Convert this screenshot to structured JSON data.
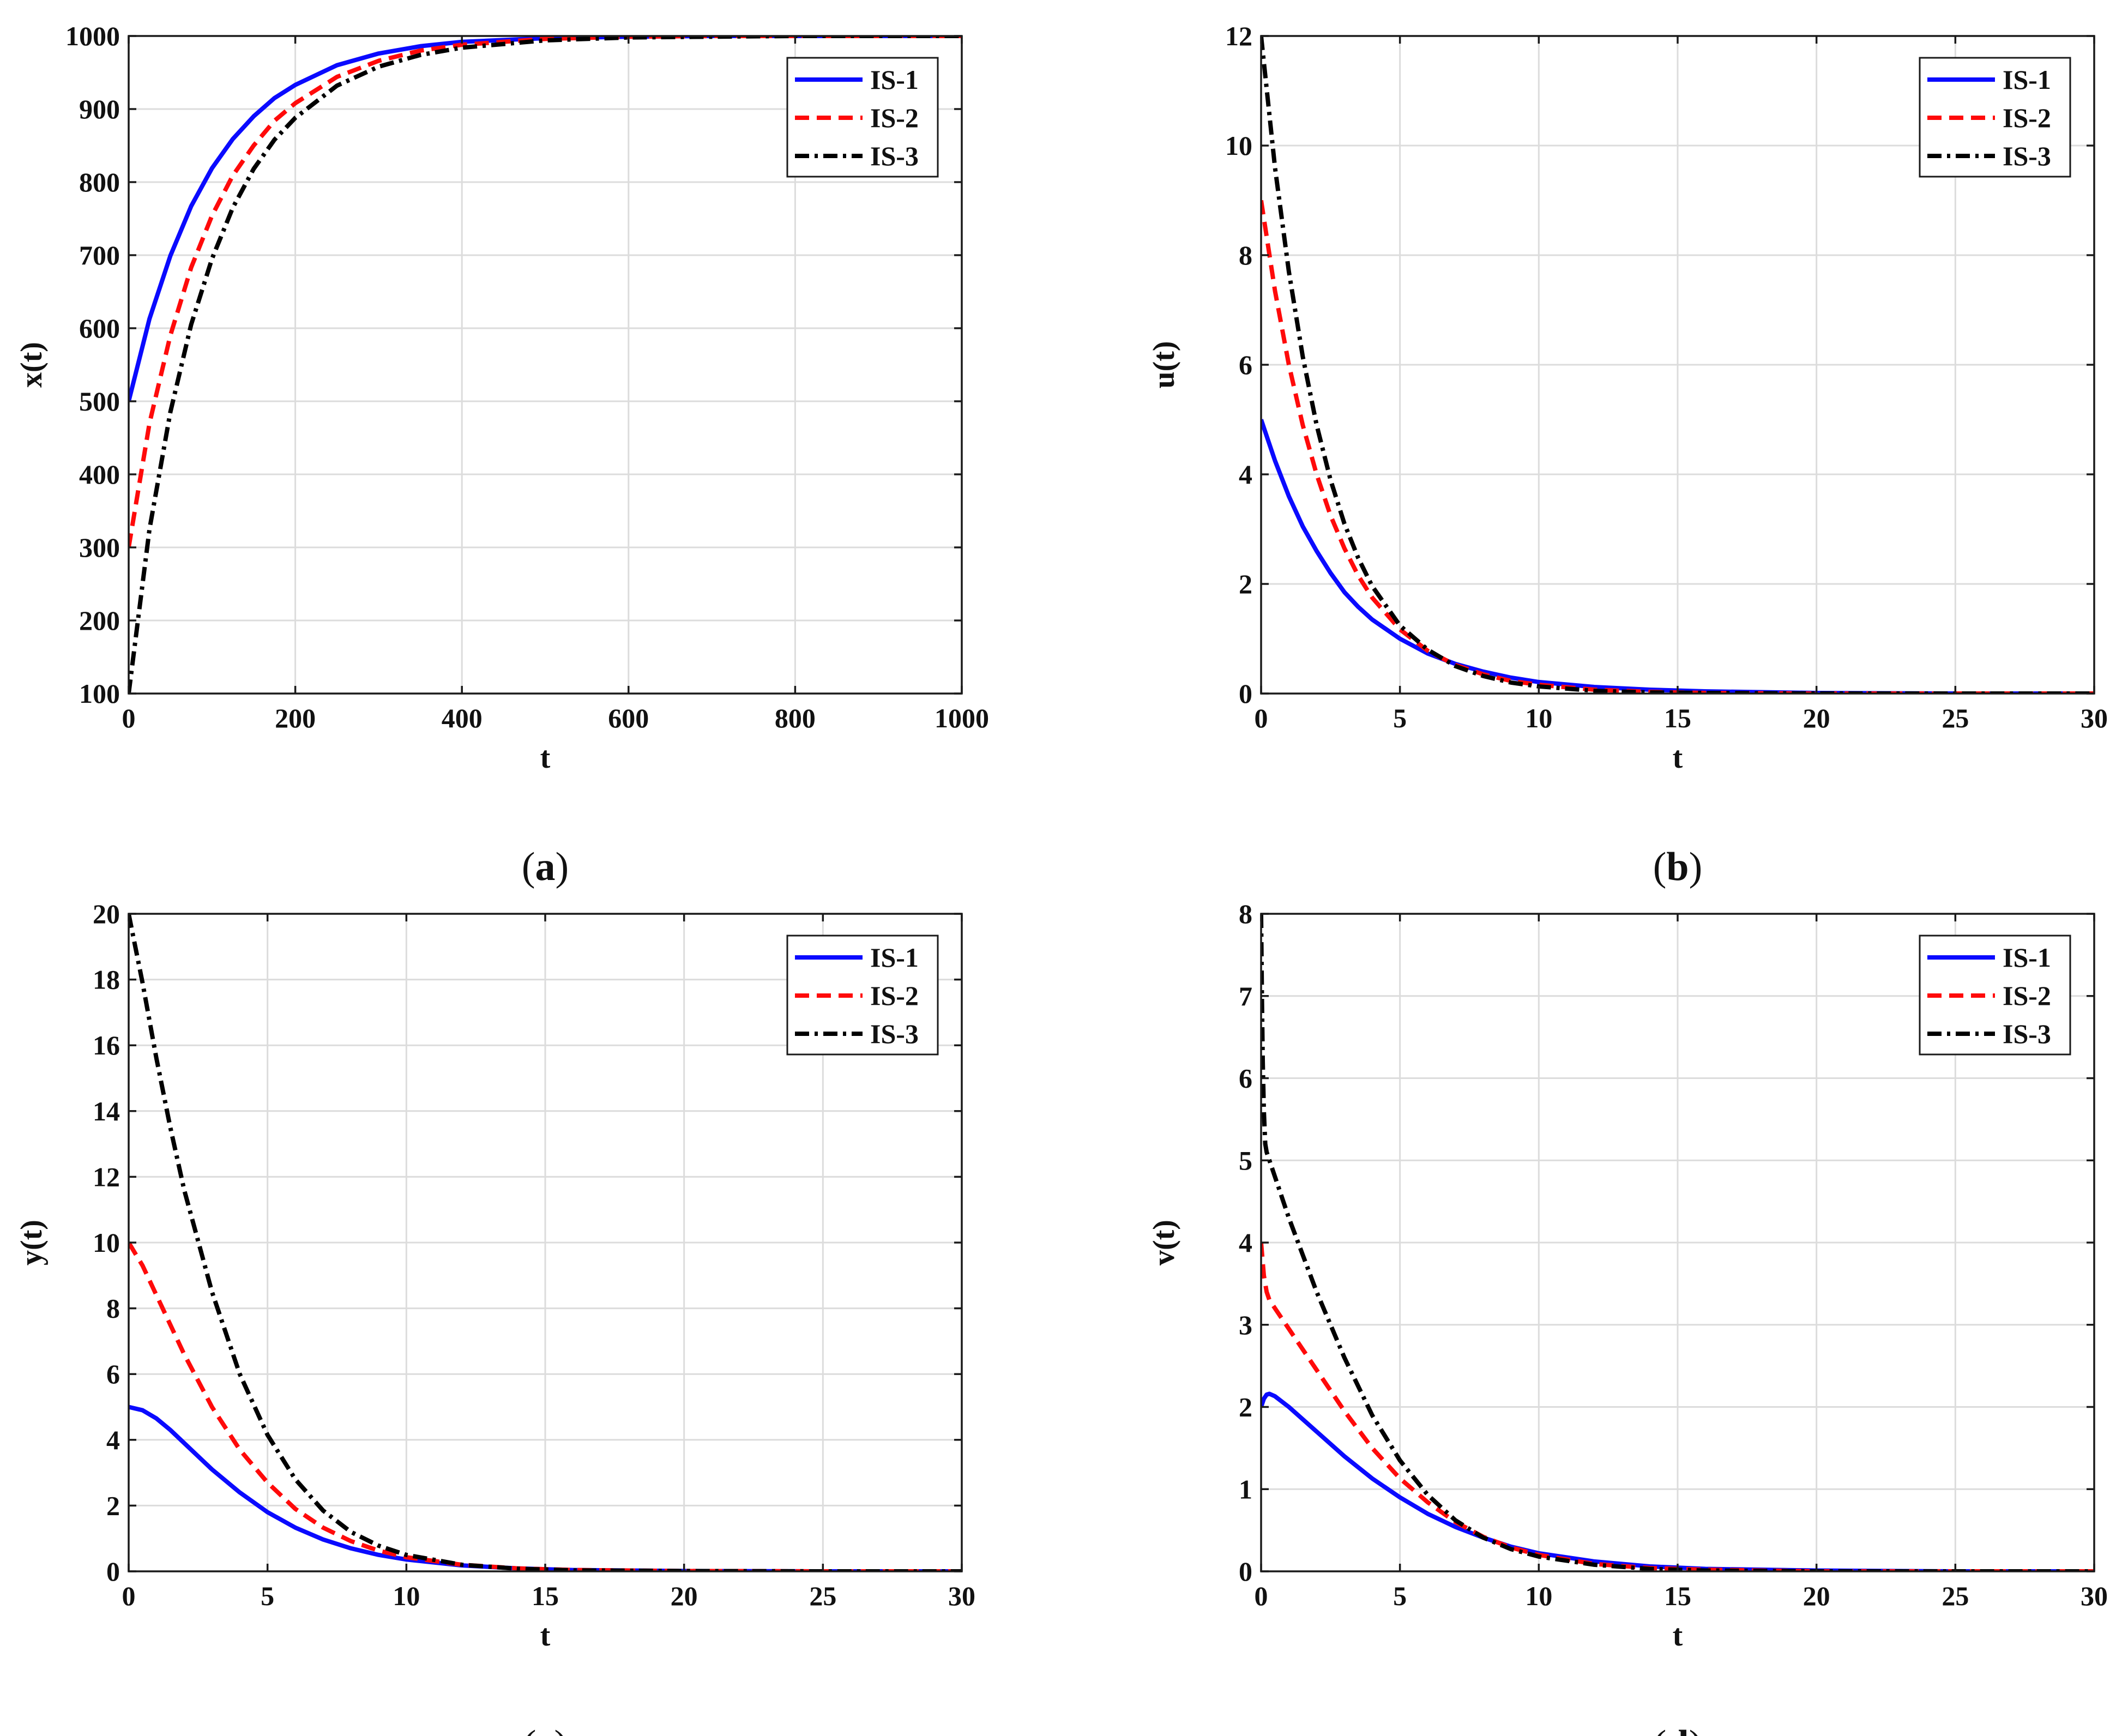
{
  "figure": {
    "panels_count": 4
  },
  "series_styles": [
    {
      "name": "IS-1",
      "color": "#0a0aff",
      "dash": "solid"
    },
    {
      "name": "IS-2",
      "color": "#ff0a0a",
      "dash": "dashed"
    },
    {
      "name": "IS-3",
      "color": "#000000",
      "dash": "dashdot"
    }
  ],
  "chart_data": [
    {
      "type": "line",
      "id": "a",
      "caption_letter": "a",
      "title": "",
      "xlabel": "t",
      "ylabel": "x(t)",
      "xlim": [
        0,
        1000
      ],
      "ylim": [
        100,
        1000
      ],
      "xticks": [
        0,
        200,
        400,
        600,
        800,
        1000
      ],
      "yticks": [
        100,
        200,
        300,
        400,
        500,
        600,
        700,
        800,
        900,
        1000
      ],
      "grid": true,
      "legend": "top-right",
      "series": [
        {
          "name": "IS-1",
          "x": [
            0,
            25,
            50,
            75,
            100,
            125,
            150,
            175,
            200,
            250,
            300,
            350,
            400,
            500,
            600,
            700,
            800,
            1000
          ],
          "y": [
            500,
            613,
            699,
            767,
            819,
            859,
            890,
            915,
            933,
            960,
            976,
            986,
            992,
            997,
            999,
            1000,
            1000,
            1000
          ]
        },
        {
          "name": "IS-2",
          "x": [
            0,
            25,
            50,
            75,
            100,
            125,
            150,
            175,
            200,
            250,
            300,
            350,
            400,
            500,
            600,
            700,
            800,
            1000
          ],
          "y": [
            300,
            470,
            590,
            683,
            754,
            809,
            850,
            884,
            908,
            944,
            966,
            980,
            988,
            996,
            999,
            1000,
            1000,
            1000
          ]
        },
        {
          "name": "IS-3",
          "x": [
            0,
            25,
            50,
            75,
            100,
            125,
            150,
            175,
            200,
            250,
            300,
            350,
            400,
            500,
            600,
            700,
            800,
            1000
          ],
          "y": [
            100,
            325,
            485,
            605,
            695,
            765,
            818,
            858,
            888,
            932,
            958,
            974,
            984,
            994,
            998,
            999,
            1000,
            1000
          ]
        }
      ]
    },
    {
      "type": "line",
      "id": "b",
      "caption_letter": "b",
      "title": "",
      "xlabel": "t",
      "ylabel": "u(t)",
      "xlim": [
        0,
        30
      ],
      "ylim": [
        0,
        12
      ],
      "xticks": [
        0,
        5,
        10,
        15,
        20,
        25,
        30
      ],
      "yticks": [
        0,
        2,
        4,
        6,
        8,
        10,
        12
      ],
      "grid": true,
      "legend": "top-right",
      "series": [
        {
          "name": "IS-1",
          "x": [
            0,
            0.5,
            1,
            1.5,
            2,
            2.5,
            3,
            3.5,
            4,
            5,
            6,
            7,
            8,
            9,
            10,
            12,
            14,
            16,
            20,
            25,
            30
          ],
          "y": [
            5.0,
            4.25,
            3.6,
            3.05,
            2.6,
            2.2,
            1.85,
            1.58,
            1.35,
            1.0,
            0.73,
            0.54,
            0.4,
            0.29,
            0.21,
            0.12,
            0.07,
            0.04,
            0.01,
            0.0,
            0.0
          ]
        },
        {
          "name": "IS-2",
          "x": [
            0,
            0.5,
            1,
            1.5,
            2,
            2.5,
            3,
            3.5,
            4,
            5,
            6,
            7,
            8,
            9,
            10,
            12,
            14,
            16,
            20,
            25,
            30
          ],
          "y": [
            9.0,
            7.35,
            6.0,
            4.9,
            4.0,
            3.25,
            2.65,
            2.15,
            1.75,
            1.17,
            0.78,
            0.52,
            0.35,
            0.23,
            0.16,
            0.07,
            0.03,
            0.01,
            0.0,
            0.0,
            0.0
          ]
        },
        {
          "name": "IS-3",
          "x": [
            0,
            0.5,
            1,
            1.5,
            2,
            2.5,
            3,
            3.5,
            4,
            5,
            6,
            7,
            8,
            9,
            10,
            12,
            14,
            16,
            20,
            25,
            30
          ],
          "y": [
            12.0,
            9.6,
            7.7,
            6.15,
            4.9,
            3.9,
            3.1,
            2.47,
            1.96,
            1.24,
            0.8,
            0.5,
            0.32,
            0.2,
            0.13,
            0.05,
            0.02,
            0.01,
            0.0,
            0.0,
            0.0
          ]
        }
      ]
    },
    {
      "type": "line",
      "id": "c",
      "caption_letter": "c",
      "title": "",
      "xlabel": "t",
      "ylabel": "y(t)",
      "xlim": [
        0,
        30
      ],
      "ylim": [
        0,
        20
      ],
      "xticks": [
        0,
        5,
        10,
        15,
        20,
        25,
        30
      ],
      "yticks": [
        0,
        2,
        4,
        6,
        8,
        10,
        12,
        14,
        16,
        18,
        20
      ],
      "grid": true,
      "legend": "top-right",
      "series": [
        {
          "name": "IS-1",
          "x": [
            0,
            0.5,
            1,
            1.5,
            2,
            3,
            4,
            5,
            6,
            7,
            8,
            9,
            10,
            12,
            14,
            16,
            20,
            25,
            30
          ],
          "y": [
            5.0,
            4.9,
            4.65,
            4.3,
            3.9,
            3.1,
            2.4,
            1.8,
            1.33,
            0.97,
            0.7,
            0.5,
            0.36,
            0.18,
            0.09,
            0.04,
            0.01,
            0.0,
            0.0
          ]
        },
        {
          "name": "IS-2",
          "x": [
            0,
            0.5,
            1,
            1.5,
            2,
            3,
            4,
            5,
            6,
            7,
            8,
            9,
            10,
            12,
            14,
            16,
            20,
            25,
            30
          ],
          "y": [
            10.0,
            9.3,
            8.4,
            7.5,
            6.6,
            5.0,
            3.7,
            2.7,
            1.9,
            1.33,
            0.92,
            0.63,
            0.43,
            0.2,
            0.09,
            0.04,
            0.01,
            0.0,
            0.0
          ]
        },
        {
          "name": "IS-3",
          "x": [
            0,
            0.5,
            1,
            1.5,
            2,
            3,
            4,
            5,
            6,
            7,
            8,
            9,
            10,
            12,
            14,
            16,
            20,
            25,
            30
          ],
          "y": [
            20.0,
            17.9,
            15.6,
            13.5,
            11.6,
            8.5,
            6.0,
            4.15,
            2.8,
            1.85,
            1.2,
            0.78,
            0.5,
            0.2,
            0.08,
            0.03,
            0.01,
            0.0,
            0.0
          ]
        }
      ]
    },
    {
      "type": "line",
      "id": "d",
      "caption_letter": "d",
      "title": "",
      "xlabel": "t",
      "ylabel": "v(t)",
      "xlim": [
        0,
        30
      ],
      "ylim": [
        0,
        8
      ],
      "xticks": [
        0,
        5,
        10,
        15,
        20,
        25,
        30
      ],
      "yticks": [
        0,
        1,
        2,
        3,
        4,
        5,
        6,
        7,
        8
      ],
      "grid": true,
      "legend": "top-right",
      "series": [
        {
          "name": "IS-1",
          "x": [
            0,
            0.1,
            0.2,
            0.3,
            0.5,
            1,
            1.5,
            2,
            3,
            4,
            5,
            6,
            7,
            8,
            9,
            10,
            12,
            14,
            16,
            20,
            25,
            30
          ],
          "y": [
            2.0,
            2.1,
            2.15,
            2.16,
            2.13,
            2.0,
            1.85,
            1.7,
            1.4,
            1.13,
            0.9,
            0.7,
            0.54,
            0.41,
            0.3,
            0.22,
            0.12,
            0.06,
            0.03,
            0.01,
            0.0,
            0.0
          ]
        },
        {
          "name": "IS-2",
          "x": [
            0,
            0.05,
            0.1,
            0.2,
            0.3,
            0.5,
            1,
            1.5,
            2,
            3,
            4,
            5,
            6,
            7,
            8,
            9,
            10,
            12,
            14,
            16,
            20,
            25,
            30
          ],
          "y": [
            4.0,
            3.8,
            3.6,
            3.4,
            3.3,
            3.2,
            2.95,
            2.7,
            2.45,
            1.95,
            1.5,
            1.13,
            0.84,
            0.6,
            0.42,
            0.29,
            0.2,
            0.09,
            0.04,
            0.02,
            0.0,
            0.0,
            0.0
          ]
        },
        {
          "name": "IS-3",
          "x": [
            0,
            0.03,
            0.06,
            0.1,
            0.15,
            0.2,
            0.3,
            0.5,
            1,
            1.5,
            2,
            3,
            4,
            5,
            6,
            7,
            8,
            9,
            10,
            12,
            14,
            16,
            20,
            25,
            30
          ],
          "y": [
            8.0,
            7.0,
            6.2,
            5.6,
            5.2,
            5.1,
            5.0,
            4.8,
            4.3,
            3.85,
            3.4,
            2.6,
            1.9,
            1.35,
            0.93,
            0.62,
            0.41,
            0.27,
            0.18,
            0.08,
            0.03,
            0.01,
            0.0,
            0.0,
            0.0
          ]
        }
      ]
    }
  ]
}
